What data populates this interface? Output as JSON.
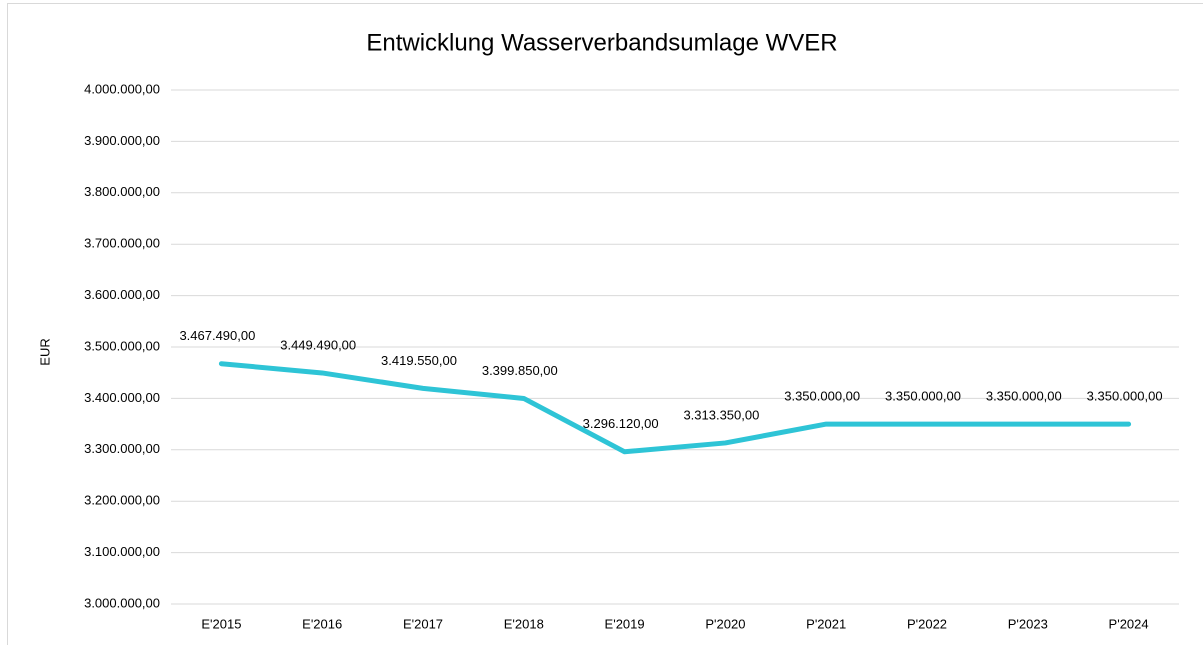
{
  "chart_data": {
    "type": "line",
    "title": "Entwicklung Wasserverbandsumlage WVER",
    "ylabel": "EUR",
    "categories": [
      "E'2015",
      "E'2016",
      "E'2017",
      "E'2018",
      "E'2019",
      "P'2020",
      "P'2021",
      "P'2022",
      "P'2023",
      "P'2024"
    ],
    "series": [
      {
        "name": "Wasserverbandsumlage",
        "color": "#2ec4d6",
        "values": [
          3467490,
          3449490,
          3419550,
          3399850,
          3296120,
          3313350,
          3350000,
          3350000,
          3350000,
          3350000
        ],
        "value_labels": [
          "3.467.490,00",
          "3.449.490,00",
          "3.419.550,00",
          "3.399.850,00",
          "3.296.120,00",
          "3.313.350,00",
          "3.350.000,00",
          "3.350.000,00",
          "3.350.000,00",
          "3.350.000,00"
        ]
      }
    ],
    "ylim": [
      3000000,
      4000000
    ],
    "yticks": [
      {
        "value": 3000000,
        "label": "3.000.000,00"
      },
      {
        "value": 3100000,
        "label": "3.100.000,00"
      },
      {
        "value": 3200000,
        "label": "3.200.000,00"
      },
      {
        "value": 3300000,
        "label": "3.300.000,00"
      },
      {
        "value": 3400000,
        "label": "3.400.000,00"
      },
      {
        "value": 3500000,
        "label": "3.500.000,00"
      },
      {
        "value": 3600000,
        "label": "3.600.000,00"
      },
      {
        "value": 3700000,
        "label": "3.700.000,00"
      },
      {
        "value": 3800000,
        "label": "3.800.000,00"
      },
      {
        "value": 3900000,
        "label": "3.900.000,00"
      },
      {
        "value": 4000000,
        "label": "4.000.000,00"
      }
    ],
    "grid": true
  }
}
